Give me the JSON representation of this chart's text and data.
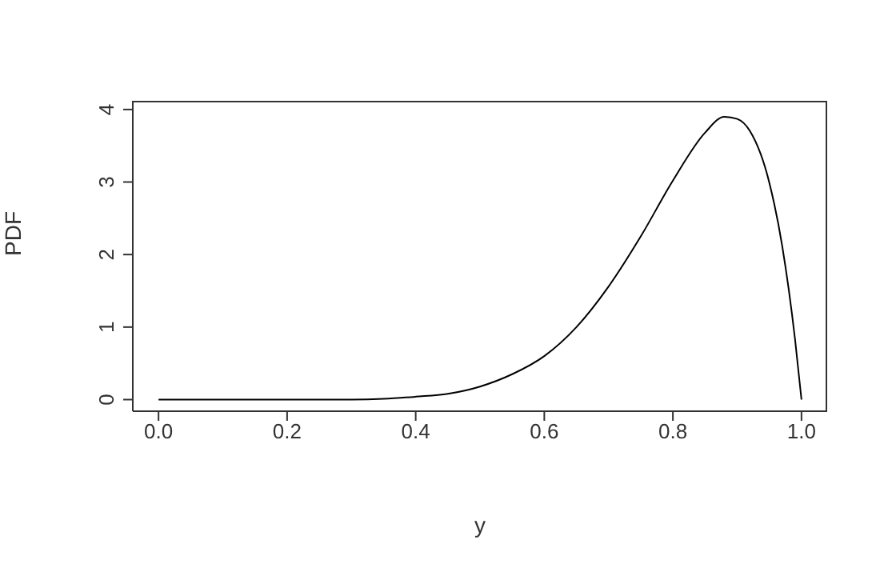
{
  "chart_data": {
    "type": "line",
    "xlabel": "y",
    "ylabel": "PDF",
    "x": [
      0,
      0.1,
      0.2,
      0.3,
      0.35,
      0.4,
      0.45,
      0.5,
      0.55,
      0.6,
      0.65,
      0.7,
      0.75,
      0.8,
      0.85,
      0.88,
      0.9,
      0.92,
      0.95,
      0.97,
      0.99,
      1.0
    ],
    "series": [
      {
        "color": "#000000",
        "values": [
          0,
          0,
          0,
          0,
          0.01,
          0.04,
          0.08,
          0.18,
          0.35,
          0.6,
          1.0,
          1.56,
          2.25,
          3.02,
          3.68,
          3.9,
          3.87,
          3.7,
          2.99,
          2.12,
          0.83,
          0
        ]
      }
    ],
    "xlim": [
      -0.04,
      1.04
    ],
    "xticks": [
      {
        "value": 0,
        "label": "0.0"
      },
      {
        "value": 0.2,
        "label": "0.2"
      },
      {
        "value": 0.4,
        "label": "0.4"
      },
      {
        "value": 0.6,
        "label": "0.6"
      },
      {
        "value": 0.8,
        "label": "0.8"
      },
      {
        "value": 1,
        "label": "1.0"
      }
    ],
    "ylim": [
      -0.16,
      4.12
    ],
    "yticks": [
      0,
      1,
      2,
      3,
      4
    ],
    "grid": false,
    "marker": "none",
    "line_style": "solid"
  }
}
